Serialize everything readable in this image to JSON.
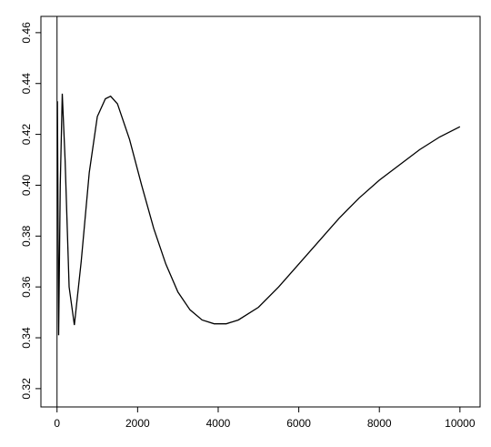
{
  "chart_data": {
    "type": "line",
    "x": [
      10,
      40,
      80,
      130,
      200,
      300,
      430,
      600,
      800,
      1000,
      1200,
      1330,
      1500,
      1800,
      2100,
      2400,
      2700,
      3000,
      3300,
      3600,
      3900,
      4200,
      4500,
      5000,
      5500,
      6000,
      6500,
      7000,
      7500,
      8000,
      8500,
      9000,
      9500,
      10000
    ],
    "series": [
      {
        "color": "#000000",
        "values": [
          0.433,
          0.341,
          0.4,
          0.436,
          0.41,
          0.36,
          0.345,
          0.37,
          0.405,
          0.427,
          0.434,
          0.435,
          0.432,
          0.418,
          0.4,
          0.383,
          0.369,
          0.358,
          0.351,
          0.347,
          0.3455,
          0.3455,
          0.347,
          0.352,
          0.36,
          0.369,
          0.378,
          0.387,
          0.395,
          0.402,
          0.408,
          0.414,
          0.419,
          0.423
        ]
      }
    ],
    "vlines": [
      0
    ],
    "xlim": [
      -400,
      10500
    ],
    "ylim": [
      0.3128,
      0.4664
    ],
    "xticks": [
      0,
      2000,
      4000,
      6000,
      8000,
      10000
    ],
    "yticks": [
      0.32,
      0.34,
      0.36,
      0.38,
      {
        "value": 0.4,
        "label": "0.40"
      },
      0.42,
      0.44,
      0.46
    ]
  }
}
